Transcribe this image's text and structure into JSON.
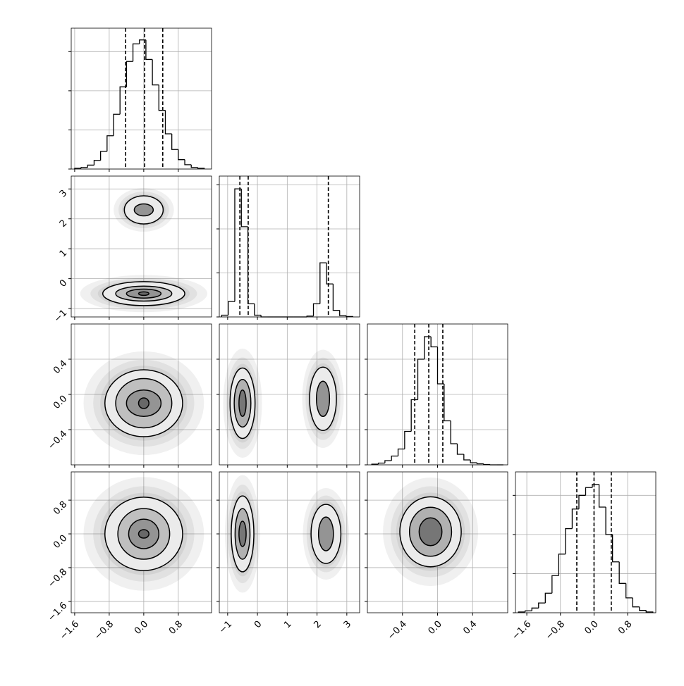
{
  "chart_data": {
    "type": "corner",
    "grid": true,
    "variables": [
      {
        "range": [
          -1.68,
          1.57
        ],
        "ticks": [
          {
            "value": -1.6,
            "label": "−1.6"
          },
          {
            "value": -0.8,
            "label": "−0.8"
          },
          {
            "value": 0,
            "label": "0.0"
          },
          0.8
        ],
        "quantiles": [
          -0.42,
          0.02,
          0.44
        ],
        "hist": {
          "bins": [
            -1.6,
            -1.45,
            -1.3,
            -1.15,
            -1.0,
            -0.85,
            -0.7,
            -0.55,
            -0.4,
            -0.25,
            -0.1,
            0.05,
            0.2,
            0.35,
            0.5,
            0.65,
            0.8,
            0.95,
            1.1,
            1.25,
            1.4
          ],
          "counts": [
            2,
            4,
            10,
            22,
            45,
            85,
            140,
            210,
            275,
            320,
            330,
            280,
            215,
            150,
            90,
            50,
            24,
            11,
            4,
            2
          ],
          "ylim": [
            0,
            360
          ],
          "yticks": [
            0,
            100,
            200,
            300
          ]
        }
      },
      {
        "range": [
          -1.28,
          3.43
        ],
        "ticks": [
          {
            "value": -1,
            "label": "−1"
          },
          0,
          1,
          2,
          3
        ],
        "quantiles": [
          -0.59,
          -0.31,
          2.38
        ],
        "hist": {
          "bins": [
            -1.2,
            -0.98,
            -0.76,
            -0.54,
            -0.32,
            -0.1,
            0.12,
            0.34,
            0.56,
            0.78,
            1.0,
            1.22,
            1.44,
            1.66,
            1.88,
            2.1,
            2.32,
            2.54,
            2.76,
            2.98,
            3.2
          ],
          "counts": [
            4,
            35,
            291,
            205,
            30,
            4,
            0,
            0,
            0,
            0,
            0,
            0,
            0,
            2,
            30,
            123,
            75,
            15,
            3,
            1
          ],
          "ylim": [
            0,
            320
          ],
          "yticks": [
            0,
            100,
            200,
            300
          ]
        }
      },
      {
        "range": [
          -0.8,
          0.8
        ],
        "ticks": [
          {
            "value": -0.4,
            "label": "−0.4"
          },
          {
            "value": 0,
            "label": "0.0"
          },
          0.4
        ],
        "quantiles": [
          -0.26,
          -0.1,
          0.06
        ],
        "hist": {
          "bins": [
            -0.75,
            -0.675,
            -0.6,
            -0.525,
            -0.45,
            -0.375,
            -0.3,
            -0.225,
            -0.15,
            -0.075,
            0,
            0.075,
            0.15,
            0.225,
            0.3,
            0.375,
            0.45,
            0.525,
            0.6,
            0.675,
            0.75
          ],
          "counts": [
            2,
            5,
            12,
            25,
            45,
            95,
            185,
            300,
            364,
            335,
            230,
            125,
            60,
            30,
            14,
            6,
            3,
            1,
            0,
            0
          ],
          "ylim": [
            0,
            400
          ],
          "yticks": [
            0,
            100,
            200,
            300
          ]
        }
      },
      {
        "range": [
          -1.87,
          1.47
        ],
        "ticks": [
          {
            "value": -1.6,
            "label": "−1.6"
          },
          {
            "value": -0.8,
            "label": "−0.8"
          },
          {
            "value": 0,
            "label": "0.0"
          },
          0.8
        ],
        "quantiles": [
          -0.41,
          0,
          0.41
        ],
        "hist": {
          "bins": [
            -1.8,
            -1.64,
            -1.48,
            -1.32,
            -1.16,
            -1.0,
            -0.84,
            -0.68,
            -0.52,
            -0.36,
            -0.2,
            -0.04,
            0.12,
            0.28,
            0.44,
            0.6,
            0.76,
            0.92,
            1.08,
            1.24,
            1.4
          ],
          "counts": [
            2,
            5,
            12,
            25,
            50,
            95,
            150,
            215,
            265,
            300,
            320,
            328,
            270,
            200,
            130,
            75,
            38,
            15,
            6,
            2
          ],
          "ylim": [
            0,
            360
          ],
          "yticks": [
            0,
            100,
            200,
            300
          ]
        }
      }
    ],
    "pairs": [
      {
        "modes": [
          {
            "center": [
              0,
              2.3
            ],
            "contours": [
              [
                0.45,
                0.47
              ],
              [
                0.22,
                0.2
              ]
            ]
          },
          {
            "center": [
              0,
              -0.5
            ],
            "contours": [
              [
                0.95,
                0.4
              ],
              [
                0.65,
                0.25
              ],
              [
                0.4,
                0.15
              ],
              [
                0.12,
                0.06
              ]
            ]
          }
        ]
      },
      {
        "modes": [
          {
            "center": [
              0,
              -0.1
            ],
            "contours": [
              [
                0.9,
                0.38
              ],
              [
                0.65,
                0.28
              ],
              [
                0.4,
                0.15
              ],
              [
                0.12,
                0.06
              ]
            ]
          }
        ]
      },
      {
        "modes": [
          {
            "center": [
              -0.5,
              -0.1
            ],
            "contours": [
              [
                0.42,
                0.4
              ],
              [
                0.28,
                0.27
              ],
              [
                0.12,
                0.15
              ]
            ]
          },
          {
            "center": [
              2.2,
              -0.05
            ],
            "contours": [
              [
                0.45,
                0.36
              ],
              [
                0.22,
                0.2
              ]
            ]
          }
        ]
      },
      {
        "modes": [
          {
            "center": [
              0,
              0
            ],
            "contours": [
              [
                0.9,
                0.87
              ],
              [
                0.6,
                0.6
              ],
              [
                0.35,
                0.35
              ],
              [
                0.12,
                0.1
              ]
            ]
          }
        ]
      },
      {
        "modes": [
          {
            "center": [
              -0.5,
              0
            ],
            "contours": [
              [
                0.38,
                0.9
              ],
              [
                0.25,
                0.6
              ],
              [
                0.12,
                0.3
              ]
            ]
          },
          {
            "center": [
              2.3,
              0
            ],
            "contours": [
              [
                0.5,
                0.7
              ],
              [
                0.25,
                0.4
              ]
            ]
          }
        ]
      },
      {
        "modes": [
          {
            "center": [
              -0.08,
              0.05
            ],
            "contours": [
              [
                0.35,
                0.83
              ],
              [
                0.24,
                0.58
              ],
              [
                0.13,
                0.33
              ]
            ]
          }
        ]
      }
    ]
  }
}
